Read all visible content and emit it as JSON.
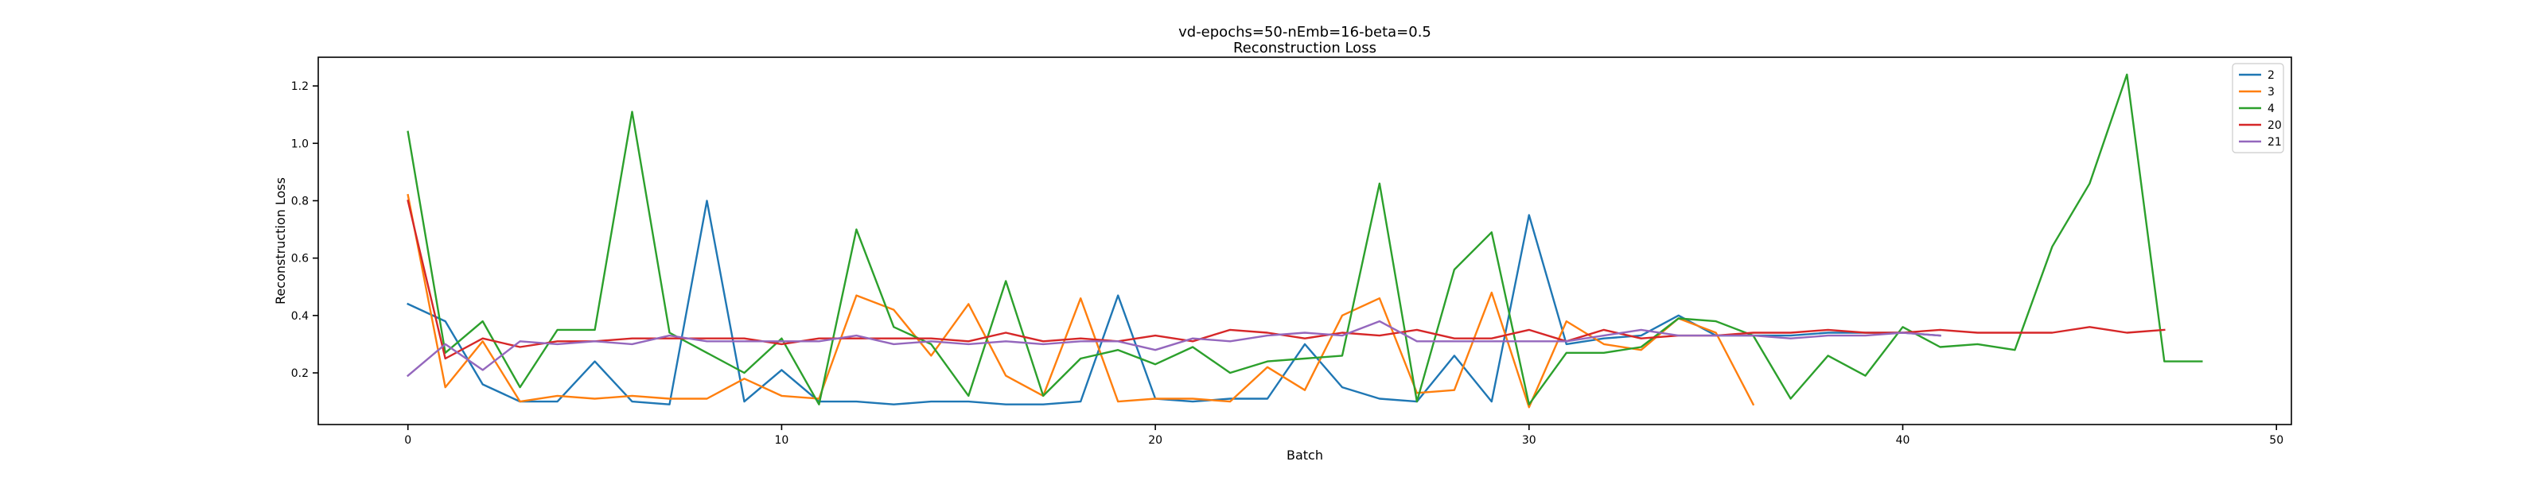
{
  "chart_data": {
    "type": "line",
    "title": "vd-epochs=50-nEmb=16-beta=0.5",
    "subtitle": "Reconstruction Loss",
    "xlabel": "Batch",
    "ylabel": "Reconstruction Loss",
    "xlim": [
      -2.4,
      50.4
    ],
    "ylim": [
      0.02,
      1.3
    ],
    "xticks": [
      0,
      10,
      20,
      30,
      40,
      50
    ],
    "yticks": [
      0.2,
      0.4,
      0.6,
      0.8,
      1.0,
      1.2
    ],
    "ytick_labels": [
      "0.2",
      "0.4",
      "0.6",
      "0.8",
      "1.0",
      "1.2"
    ],
    "grid": false,
    "legend_position": "top-right",
    "series": [
      {
        "name": "2",
        "color": "#1f77b4",
        "x": [
          0,
          1,
          2,
          3,
          4,
          5,
          6,
          7,
          8,
          9,
          10,
          11,
          12,
          13,
          14,
          15,
          16,
          17,
          18,
          19,
          20,
          21,
          22,
          23,
          24,
          25,
          26,
          27,
          28,
          29,
          30,
          31,
          32,
          33,
          34,
          35,
          36,
          37,
          38,
          39,
          40,
          41
        ],
        "y": [
          0.44,
          0.38,
          0.16,
          0.1,
          0.1,
          0.24,
          0.1,
          0.09,
          0.8,
          0.1,
          0.21,
          0.1,
          0.1,
          0.09,
          0.1,
          0.1,
          0.09,
          0.09,
          0.1,
          0.47,
          0.11,
          0.1,
          0.11,
          0.11,
          0.3,
          0.15,
          0.11,
          0.1,
          0.26,
          0.1,
          0.75,
          0.3,
          0.32,
          0.33,
          0.4,
          0.33,
          0.33,
          0.33,
          0.34,
          0.34,
          0.34,
          0.33
        ]
      },
      {
        "name": "3",
        "color": "#ff7f0e",
        "x": [
          0,
          1,
          2,
          3,
          4,
          5,
          6,
          7,
          8,
          9,
          10,
          11,
          12,
          13,
          14,
          15,
          16,
          17,
          18,
          19,
          20,
          21,
          22,
          23,
          24,
          25,
          26,
          27,
          28,
          29,
          30,
          31,
          32,
          33,
          34,
          35,
          36
        ],
        "y": [
          0.82,
          0.15,
          0.31,
          0.1,
          0.12,
          0.11,
          0.12,
          0.11,
          0.11,
          0.18,
          0.12,
          0.11,
          0.47,
          0.42,
          0.26,
          0.44,
          0.19,
          0.12,
          0.46,
          0.1,
          0.11,
          0.11,
          0.1,
          0.22,
          0.14,
          0.4,
          0.46,
          0.13,
          0.14,
          0.48,
          0.08,
          0.38,
          0.3,
          0.28,
          0.39,
          0.34,
          0.09
        ]
      },
      {
        "name": "4",
        "color": "#2ca02c",
        "x": [
          0,
          1,
          2,
          3,
          4,
          5,
          6,
          7,
          8,
          9,
          10,
          11,
          12,
          13,
          14,
          15,
          16,
          17,
          18,
          19,
          20,
          21,
          22,
          23,
          24,
          25,
          26,
          27,
          28,
          29,
          30,
          31,
          32,
          33,
          34,
          35,
          36,
          37,
          38,
          39,
          40,
          41,
          42,
          43,
          44,
          45,
          46,
          47,
          48
        ],
        "y": [
          1.04,
          0.27,
          0.38,
          0.15,
          0.35,
          0.35,
          1.11,
          0.34,
          0.27,
          0.2,
          0.32,
          0.09,
          0.7,
          0.36,
          0.3,
          0.12,
          0.52,
          0.12,
          0.25,
          0.28,
          0.23,
          0.29,
          0.2,
          0.24,
          0.25,
          0.26,
          0.86,
          0.1,
          0.56,
          0.69,
          0.09,
          0.27,
          0.27,
          0.29,
          0.39,
          0.38,
          0.33,
          0.11,
          0.26,
          0.19,
          0.36,
          0.29,
          0.3,
          0.28,
          0.64,
          0.86,
          1.24,
          0.24,
          0.24
        ]
      },
      {
        "name": "20",
        "color": "#d62728",
        "x": [
          0,
          1,
          2,
          3,
          4,
          5,
          6,
          7,
          8,
          9,
          10,
          11,
          12,
          13,
          14,
          15,
          16,
          17,
          18,
          19,
          20,
          21,
          22,
          23,
          24,
          25,
          26,
          27,
          28,
          29,
          30,
          31,
          32,
          33,
          34,
          35,
          36,
          37,
          38,
          39,
          40,
          41,
          42,
          43,
          44,
          45,
          46,
          47
        ],
        "y": [
          0.8,
          0.25,
          0.32,
          0.29,
          0.31,
          0.31,
          0.32,
          0.32,
          0.32,
          0.32,
          0.3,
          0.32,
          0.32,
          0.32,
          0.32,
          0.31,
          0.34,
          0.31,
          0.32,
          0.31,
          0.33,
          0.31,
          0.35,
          0.34,
          0.32,
          0.34,
          0.33,
          0.35,
          0.32,
          0.32,
          0.35,
          0.31,
          0.35,
          0.32,
          0.33,
          0.33,
          0.34,
          0.34,
          0.35,
          0.34,
          0.34,
          0.35,
          0.34,
          0.34,
          0.34,
          0.36,
          0.34,
          0.35
        ]
      },
      {
        "name": "21",
        "color": "#9467bd",
        "x": [
          0,
          1,
          2,
          3,
          4,
          5,
          6,
          7,
          8,
          9,
          10,
          11,
          12,
          13,
          14,
          15,
          16,
          17,
          18,
          19,
          20,
          21,
          22,
          23,
          24,
          25,
          26,
          27,
          28,
          29,
          30,
          31,
          32,
          33,
          34,
          35,
          36,
          37,
          38,
          39,
          40,
          41
        ],
        "y": [
          0.19,
          0.3,
          0.21,
          0.31,
          0.3,
          0.31,
          0.3,
          0.33,
          0.31,
          0.31,
          0.31,
          0.31,
          0.33,
          0.3,
          0.31,
          0.3,
          0.31,
          0.3,
          0.31,
          0.31,
          0.28,
          0.32,
          0.31,
          0.33,
          0.34,
          0.33,
          0.38,
          0.31,
          0.31,
          0.31,
          0.31,
          0.31,
          0.33,
          0.35,
          0.33,
          0.33,
          0.33,
          0.32,
          0.33,
          0.33,
          0.34,
          0.33
        ]
      }
    ]
  }
}
